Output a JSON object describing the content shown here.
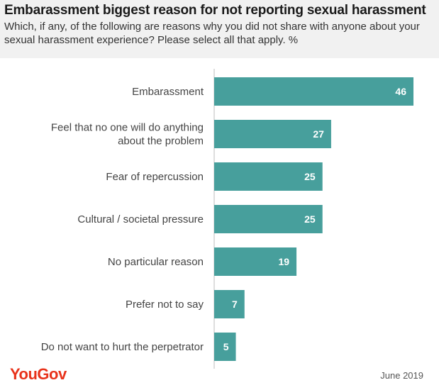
{
  "header": {
    "title": "Embarassment biggest reason for not reporting sexual harassment",
    "subtitle": "Which, if any, of the following are reasons why you did not share with anyone about your sexual harassment experience? Please select all that apply. %"
  },
  "footer": {
    "brand": "YouGov",
    "date": "June 2019"
  },
  "colors": {
    "bar": "#479f9c",
    "brand": "#e8331b",
    "header_bg": "#f1f1f1"
  },
  "chart_data": {
    "type": "bar",
    "orientation": "horizontal",
    "title": "Embarassment biggest reason for not reporting sexual harassment",
    "categories": [
      [
        "Embarassment"
      ],
      [
        "Feel that no one will do anything",
        "about the problem"
      ],
      [
        "Fear of repercussion"
      ],
      [
        "Cultural / societal pressure"
      ],
      [
        "No particular reason"
      ],
      [
        "Prefer not to say"
      ],
      [
        "Do not want to hurt the perpetrator"
      ]
    ],
    "values": [
      46,
      27,
      25,
      25,
      19,
      7,
      5
    ],
    "xlim": [
      0,
      50
    ],
    "unit": "%",
    "grid": false,
    "legend": "none"
  }
}
